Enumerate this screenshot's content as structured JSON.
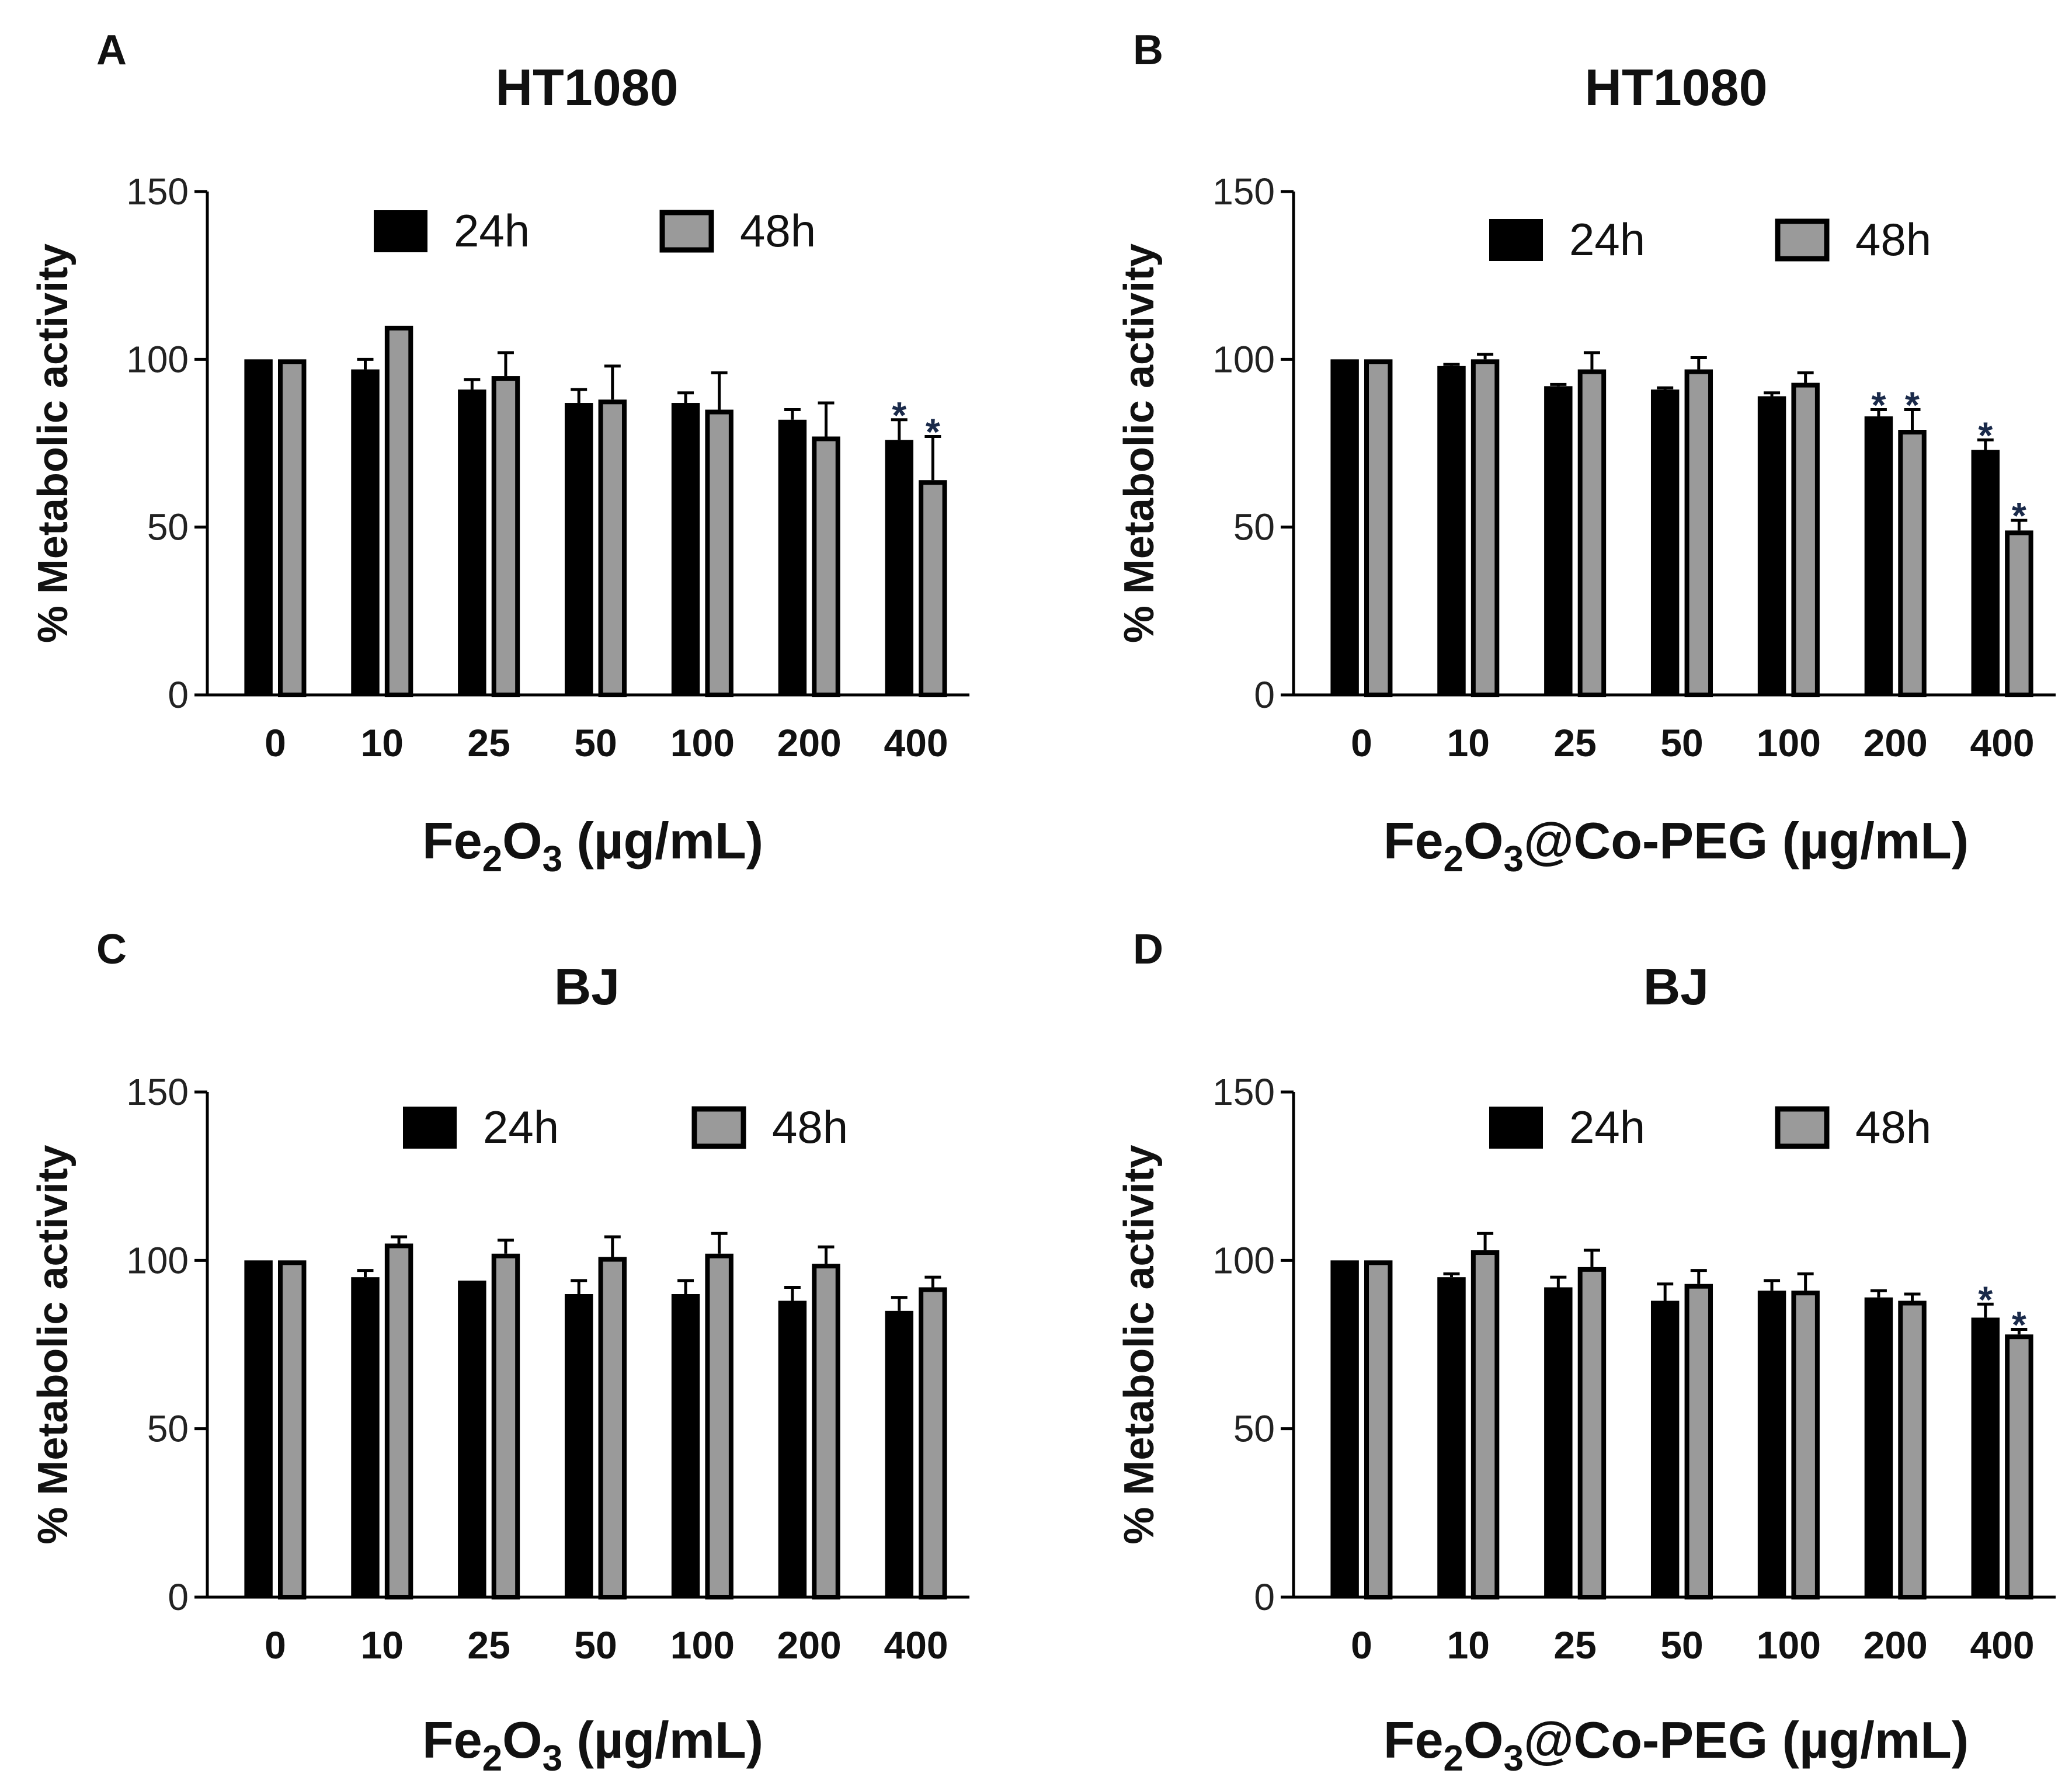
{
  "chart_data": [
    {
      "panel": "A",
      "type": "bar",
      "title": "HT1080",
      "ylabel": "% Metabolic activity",
      "xlabel": {
        "prefix": "Fe",
        "sub1": "2",
        "mid": "O",
        "sub2": "3",
        "suffix": " (µg/mL)"
      },
      "ylim": [
        0,
        150
      ],
      "yticks": [
        "0",
        "50",
        "100",
        "150"
      ],
      "categories": [
        "0",
        "10",
        "25",
        "50",
        "100",
        "200",
        "400"
      ],
      "legend": [
        "24h",
        "48h"
      ],
      "series": [
        {
          "name": "24h",
          "values": [
            100,
            97,
            91,
            87,
            87,
            82,
            76
          ],
          "errors": [
            0,
            3,
            3,
            4,
            3,
            3,
            6
          ],
          "stars": [
            false,
            false,
            false,
            false,
            false,
            false,
            true
          ]
        },
        {
          "name": "48h",
          "values": [
            100,
            110,
            95,
            88,
            85,
            77,
            64
          ],
          "errors": [
            0,
            0,
            7,
            10,
            11,
            10,
            13
          ],
          "stars": [
            false,
            false,
            false,
            false,
            false,
            false,
            true
          ]
        }
      ]
    },
    {
      "panel": "B",
      "type": "bar",
      "title": "HT1080",
      "ylabel": "% Metabolic activity",
      "xlabel": {
        "prefix": "Fe",
        "sub1": "2",
        "mid": "O",
        "sub2": "3",
        "suffix": "@Co-PEG (µg/mL)"
      },
      "ylim": [
        0,
        150
      ],
      "yticks": [
        "0",
        "50",
        "100",
        "150"
      ],
      "categories": [
        "0",
        "10",
        "25",
        "50",
        "100",
        "200",
        "400"
      ],
      "legend": [
        "24h",
        "48h"
      ],
      "series": [
        {
          "name": "24h",
          "values": [
            100,
            98,
            92,
            91,
            89,
            83,
            73
          ],
          "errors": [
            0,
            0.5,
            0.5,
            0.5,
            1,
            2,
            3
          ],
          "stars": [
            false,
            false,
            false,
            false,
            false,
            true,
            true
          ]
        },
        {
          "name": "48h",
          "values": [
            100,
            100,
            97,
            97,
            93,
            79,
            49
          ],
          "errors": [
            0,
            1.5,
            5,
            3.5,
            3,
            6,
            3
          ],
          "stars": [
            false,
            false,
            false,
            false,
            false,
            true,
            true
          ]
        }
      ]
    },
    {
      "panel": "C",
      "type": "bar",
      "title": "BJ",
      "ylabel": "% Metabolic activity",
      "xlabel": {
        "prefix": "Fe",
        "sub1": "2",
        "mid": "O",
        "sub2": "3",
        "suffix": " (µg/mL)"
      },
      "ylim": [
        0,
        150
      ],
      "yticks": [
        "0",
        "50",
        "100",
        "150"
      ],
      "categories": [
        "0",
        "10",
        "25",
        "50",
        "100",
        "200",
        "400"
      ],
      "legend": [
        "24h",
        "48h"
      ],
      "series": [
        {
          "name": "24h",
          "values": [
            100,
            95,
            94,
            90,
            90,
            88,
            85
          ],
          "errors": [
            0,
            2,
            0,
            4,
            4,
            4,
            4
          ],
          "stars": [
            false,
            false,
            false,
            false,
            false,
            false,
            false
          ]
        },
        {
          "name": "48h",
          "values": [
            100,
            105,
            102,
            101,
            102,
            99,
            92
          ],
          "errors": [
            0,
            2,
            4,
            6,
            6,
            5,
            3
          ],
          "stars": [
            false,
            false,
            false,
            false,
            false,
            false,
            false
          ]
        }
      ]
    },
    {
      "panel": "D",
      "type": "bar",
      "title": "BJ",
      "ylabel": "% Metabolic activity",
      "xlabel": {
        "prefix": "Fe",
        "sub1": "2",
        "mid": "O",
        "sub2": "3",
        "suffix": "@Co-PEG (µg/mL)"
      },
      "ylim": [
        0,
        150
      ],
      "yticks": [
        "0",
        "50",
        "100",
        "150"
      ],
      "categories": [
        "0",
        "10",
        "25",
        "50",
        "100",
        "200",
        "400"
      ],
      "legend": [
        "24h",
        "48h"
      ],
      "series": [
        {
          "name": "24h",
          "values": [
            100,
            95,
            92,
            88,
            91,
            89,
            83
          ],
          "errors": [
            0,
            1,
            3,
            5,
            3,
            2,
            4
          ],
          "stars": [
            false,
            false,
            false,
            false,
            false,
            false,
            true
          ]
        },
        {
          "name": "48h",
          "values": [
            100,
            103,
            98,
            93,
            91,
            88,
            78
          ],
          "errors": [
            0,
            5,
            5,
            4,
            5,
            2,
            1.5
          ],
          "stars": [
            false,
            false,
            false,
            false,
            false,
            false,
            true
          ]
        }
      ]
    }
  ],
  "star_symbol": "*",
  "colors": {
    "bar24": "#000000",
    "bar48": "#9a9a9a",
    "bar48_outline": "#000000",
    "axis": "#000000",
    "star": "#1a2a4a"
  }
}
